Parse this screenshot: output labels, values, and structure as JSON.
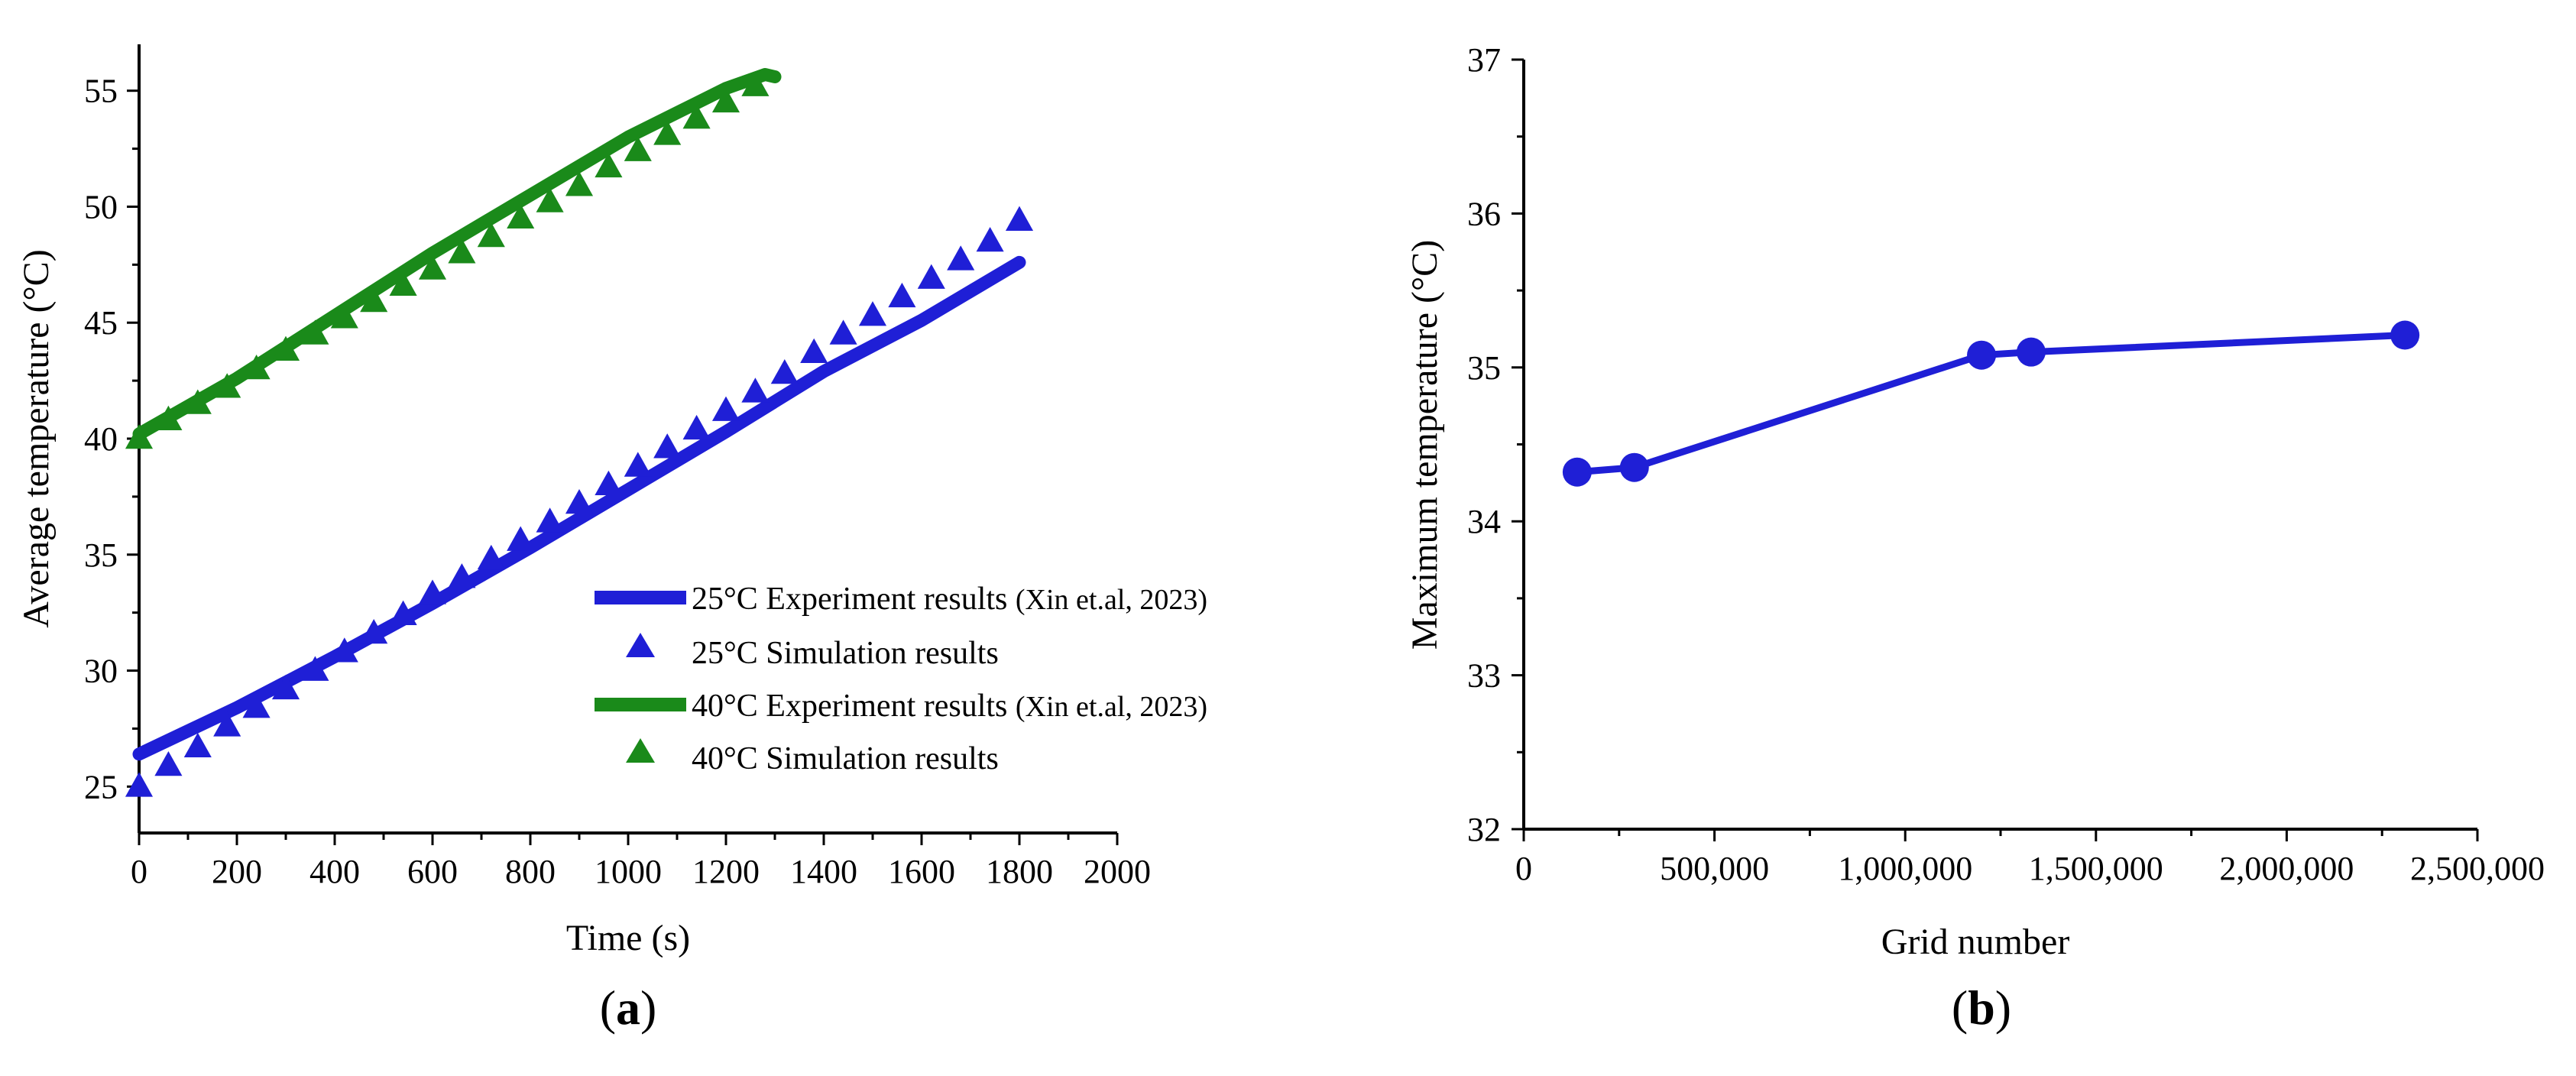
{
  "chart_data": [
    {
      "type": "line",
      "panel_label": "(a)",
      "panel_letter": "a",
      "xlabel": "Time (s)",
      "ylabel": "Average temperature (°C)",
      "xlim": [
        0,
        2000
      ],
      "ylim": [
        23,
        57
      ],
      "xticks": [
        0,
        200,
        400,
        600,
        800,
        1000,
        1200,
        1400,
        1600,
        1800,
        2000
      ],
      "yticks": [
        25,
        30,
        35,
        40,
        45,
        50,
        55
      ],
      "legend_position": "bottom-right",
      "series": [
        {
          "name": "25°C Experiment results",
          "citation": "(Xin et.al, 2023)",
          "style": "line",
          "color": "#1f1fd6",
          "x": [
            0,
            200,
            400,
            600,
            800,
            1000,
            1200,
            1400,
            1600,
            1800
          ],
          "y": [
            26.4,
            28.4,
            30.6,
            32.9,
            35.3,
            37.8,
            40.3,
            42.9,
            45.1,
            47.6
          ]
        },
        {
          "name": "25°C Simulation results",
          "style": "marker",
          "marker": "triangle",
          "color": "#1f1fd6",
          "x": [
            0,
            60,
            120,
            180,
            240,
            300,
            360,
            420,
            480,
            540,
            600,
            660,
            720,
            780,
            840,
            900,
            960,
            1020,
            1080,
            1140,
            1200,
            1260,
            1320,
            1380,
            1440,
            1500,
            1560,
            1620,
            1680,
            1740,
            1800
          ],
          "y": [
            25.0,
            25.9,
            26.7,
            27.6,
            28.4,
            29.2,
            30.0,
            30.8,
            31.6,
            32.4,
            33.3,
            34.0,
            34.8,
            35.6,
            36.4,
            37.2,
            38.0,
            38.8,
            39.6,
            40.4,
            41.2,
            42.0,
            42.8,
            43.7,
            44.5,
            45.3,
            46.1,
            46.9,
            47.7,
            48.5,
            49.4
          ]
        },
        {
          "name": "40°C Experiment results",
          "citation": "(Xin et.al, 2023)",
          "style": "line",
          "color": "#1a8a1a",
          "x": [
            0,
            200,
            400,
            600,
            800,
            1000,
            1200,
            1280,
            1300
          ],
          "y": [
            40.2,
            42.6,
            45.3,
            48.0,
            50.5,
            53.0,
            55.1,
            55.7,
            55.6
          ]
        },
        {
          "name": "40°C Simulation results",
          "style": "marker",
          "marker": "triangle",
          "color": "#1a8a1a",
          "x": [
            0,
            60,
            120,
            180,
            240,
            300,
            360,
            420,
            480,
            540,
            600,
            660,
            720,
            780,
            840,
            900,
            960,
            1020,
            1080,
            1140,
            1200,
            1260
          ],
          "y": [
            40.0,
            40.8,
            41.5,
            42.2,
            43.0,
            43.8,
            44.5,
            45.2,
            45.9,
            46.6,
            47.3,
            48.0,
            48.7,
            49.5,
            50.2,
            50.9,
            51.7,
            52.4,
            53.1,
            53.8,
            54.5,
            55.2
          ]
        }
      ]
    },
    {
      "type": "line",
      "panel_label": "(b)",
      "panel_letter": "b",
      "xlabel": "Grid number",
      "ylabel": "Maximum temperature (°C)",
      "xlim": [
        0,
        2500000
      ],
      "ylim": [
        32,
        37
      ],
      "xticks": [
        0,
        500000,
        1000000,
        1500000,
        2000000,
        2500000
      ],
      "xtick_labels": [
        "0",
        "500,000",
        "1,000,000",
        "1,500,000",
        "2,000,000",
        "2,500,000"
      ],
      "yticks": [
        32,
        33,
        34,
        35,
        36,
        37
      ],
      "series": [
        {
          "name": "Maximum temperature",
          "style": "line+marker",
          "marker": "circle",
          "color": "#1f1fd6",
          "x": [
            140000,
            290000,
            1200000,
            1330000,
            2310000
          ],
          "y": [
            34.32,
            34.35,
            35.08,
            35.1,
            35.21
          ]
        }
      ]
    }
  ]
}
